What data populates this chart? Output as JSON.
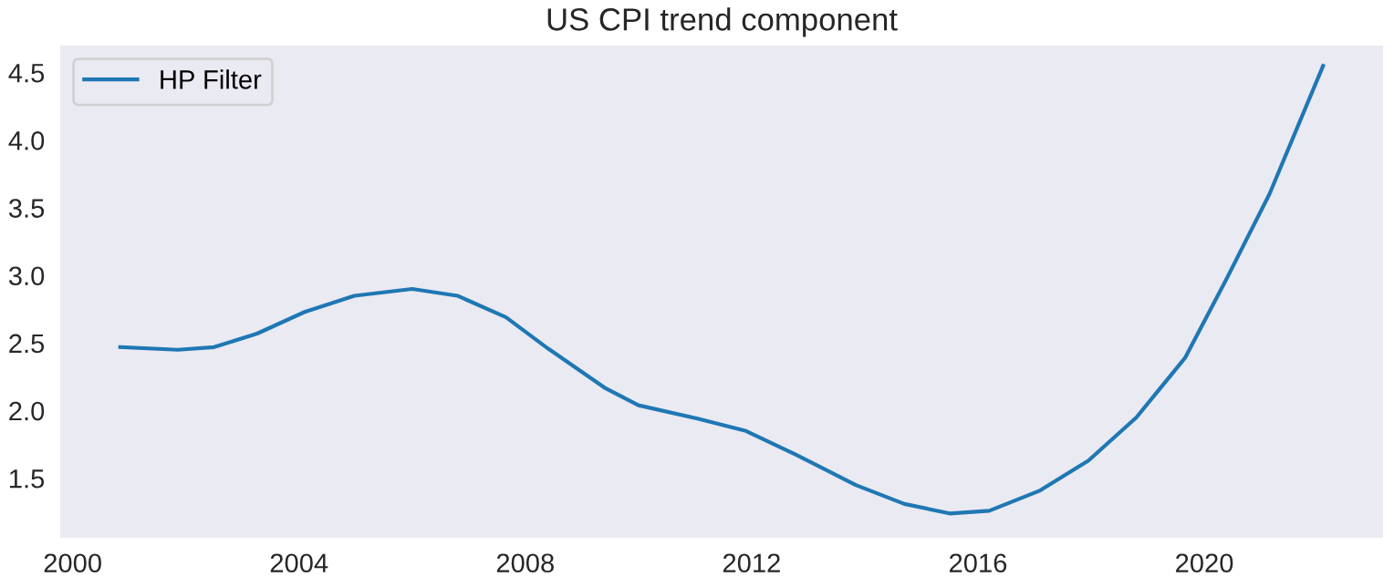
{
  "chart_data": {
    "type": "line",
    "title": "US CPI trend component",
    "series": [
      {
        "name": "HP Filter",
        "color": "#1f77b4",
        "x": [
          2000.84,
          2001.86,
          2002.5,
          2003.26,
          2004.1,
          2004.98,
          2006.0,
          2006.8,
          2007.66,
          2008.4,
          2009.4,
          2010.0,
          2011.06,
          2011.9,
          2012.76,
          2013.84,
          2014.7,
          2015.5,
          2016.2,
          2017.1,
          2017.95,
          2018.8,
          2019.66,
          2020.4,
          2021.15,
          2022.1
        ],
        "values": [
          2.47,
          2.45,
          2.47,
          2.57,
          2.73,
          2.85,
          2.9,
          2.85,
          2.69,
          2.46,
          2.17,
          2.04,
          1.94,
          1.85,
          1.68,
          1.45,
          1.31,
          1.24,
          1.26,
          1.41,
          1.63,
          1.95,
          2.39,
          2.98,
          3.6,
          4.55
        ]
      }
    ],
    "xlim": [
      1999.78,
      2023.16
    ],
    "xticks": [
      2000,
      2004,
      2008,
      2012,
      2016,
      2020
    ],
    "ylim": [
      1.06,
      4.7
    ],
    "yticks": [
      1.5,
      {
        "value": 2,
        "label": "2.0"
      },
      2.5,
      {
        "value": 3,
        "label": "3.0"
      },
      3.5,
      {
        "value": 4,
        "label": "4.0"
      },
      4.5
    ],
    "grid": false,
    "legend": "top left"
  }
}
